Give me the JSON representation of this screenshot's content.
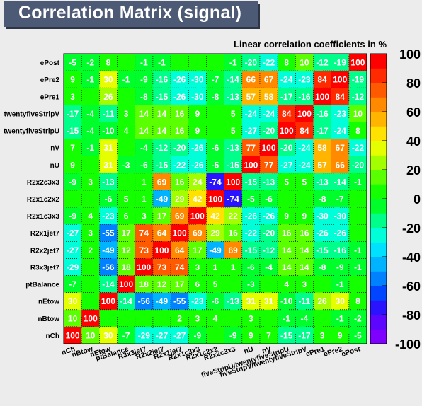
{
  "title": "Correlation Matrix (signal)",
  "chart_data": {
    "type": "heatmap",
    "title": "Correlation Matrix (signal)",
    "subtitle": "Linear correlation coefficients in %",
    "x_labels": [
      "nCh",
      "nBtow",
      "nEtow",
      "ptBalance",
      "R3x3jet7",
      "R2x2jet7",
      "R2x1jet7",
      "R2x1c3x3",
      "R2x1c2x2",
      "R2x2c3x3",
      "nU",
      "nV",
      "fiveStripU/twentyfiveStripU",
      "fiveStripV/twentyfiveStripV",
      "ePre1",
      "ePre2",
      "ePost"
    ],
    "y_labels": [
      "ePost",
      "ePre2",
      "ePre1",
      "twentyfiveStripV",
      "twentyfiveStripU",
      "nV",
      "nU",
      "R2x2c3x3",
      "R2x1c2x2",
      "R2x1c3x3",
      "R2x1jet7",
      "R2x2jet7",
      "R3x3jet7",
      "ptBalance",
      "nEtow",
      "nBtow",
      "nCh"
    ],
    "values": [
      [
        "-5",
        "-2",
        "8",
        "",
        "-1",
        "-1",
        "",
        "",
        "",
        "-1",
        "-20",
        "-22",
        "8",
        "10",
        "-12",
        "-19",
        "100"
      ],
      [
        "9",
        "-1",
        "30",
        "-1",
        "-9",
        "-16",
        "-26",
        "-30",
        "-7",
        "-14",
        "66",
        "67",
        "-24",
        "-23",
        "84",
        "100",
        "-19"
      ],
      [
        "3",
        "",
        "26",
        "",
        "-8",
        "-15",
        "-26",
        "-30",
        "-8",
        "-13",
        "57",
        "58",
        "-17",
        "-16",
        "100",
        "84",
        "-12"
      ],
      [
        "-17",
        "-4",
        "-11",
        "3",
        "14",
        "14",
        "16",
        "9",
        "",
        "5",
        "-24",
        "-24",
        "84",
        "100",
        "-16",
        "-23",
        "10"
      ],
      [
        "-15",
        "-4",
        "-10",
        "4",
        "14",
        "14",
        "16",
        "9",
        "",
        "5",
        "-27",
        "-20",
        "100",
        "84",
        "-17",
        "-24",
        "8"
      ],
      [
        "7",
        "-1",
        "31",
        "",
        "-4",
        "-12",
        "-20",
        "-26",
        "-6",
        "-13",
        "77",
        "100",
        "-20",
        "-24",
        "58",
        "67",
        "-22"
      ],
      [
        "9",
        "",
        "31",
        "-3",
        "-6",
        "-15",
        "-22",
        "-26",
        "-5",
        "-15",
        "100",
        "77",
        "-27",
        "-24",
        "57",
        "66",
        "-20"
      ],
      [
        "-9",
        "3",
        "-13",
        "",
        "1",
        "69",
        "16",
        "24",
        "-74",
        "100",
        "-15",
        "-13",
        "5",
        "5",
        "-13",
        "-14",
        "-1"
      ],
      [
        "",
        "",
        "-6",
        "5",
        "1",
        "-49",
        "29",
        "42",
        "100",
        "-74",
        "-5",
        "-6",
        "",
        "",
        "-8",
        "-7",
        ""
      ],
      [
        "-9",
        "4",
        "-23",
        "6",
        "3",
        "17",
        "69",
        "100",
        "42",
        "22",
        "-26",
        "-26",
        "9",
        "9",
        "-30",
        "-30",
        ""
      ],
      [
        "-27",
        "3",
        "-55",
        "17",
        "74",
        "64",
        "100",
        "69",
        "29",
        "16",
        "-22",
        "-20",
        "16",
        "16",
        "-26",
        "-26",
        ""
      ],
      [
        "-27",
        "2",
        "-49",
        "12",
        "73",
        "100",
        "64",
        "17",
        "-49",
        "69",
        "-15",
        "-12",
        "14",
        "14",
        "-15",
        "-16",
        "-1"
      ],
      [
        "-29",
        "",
        "-56",
        "18",
        "100",
        "73",
        "74",
        "3",
        "1",
        "1",
        "-6",
        "-4",
        "14",
        "14",
        "-8",
        "-9",
        "-1"
      ],
      [
        "-7",
        "",
        "-14",
        "100",
        "18",
        "12",
        "17",
        "6",
        "5",
        "",
        "-3",
        "",
        "4",
        "3",
        "",
        "-1",
        ""
      ],
      [
        "30",
        "",
        "100",
        "-14",
        "-56",
        "-49",
        "-55",
        "-23",
        "-6",
        "-13",
        "31",
        "31",
        "-10",
        "-11",
        "26",
        "30",
        "8"
      ],
      [
        "10",
        "100",
        "",
        "",
        "",
        "",
        "2",
        "3",
        "4",
        "",
        "3",
        "",
        "-1",
        "-4",
        "",
        "-1",
        "-2"
      ],
      [
        "100",
        "10",
        "30",
        "-7",
        "-29",
        "-27",
        "-27",
        "-9",
        "",
        "-9",
        "9",
        "7",
        "-15",
        "-17",
        "3",
        "9",
        "-5"
      ]
    ],
    "zlim": [
      -100,
      100
    ],
    "colorbar_ticks": [
      "100",
      "80",
      "60",
      "40",
      "20",
      "0",
      "-20",
      "-40",
      "-60",
      "-80",
      "-100"
    ],
    "grid": true
  }
}
